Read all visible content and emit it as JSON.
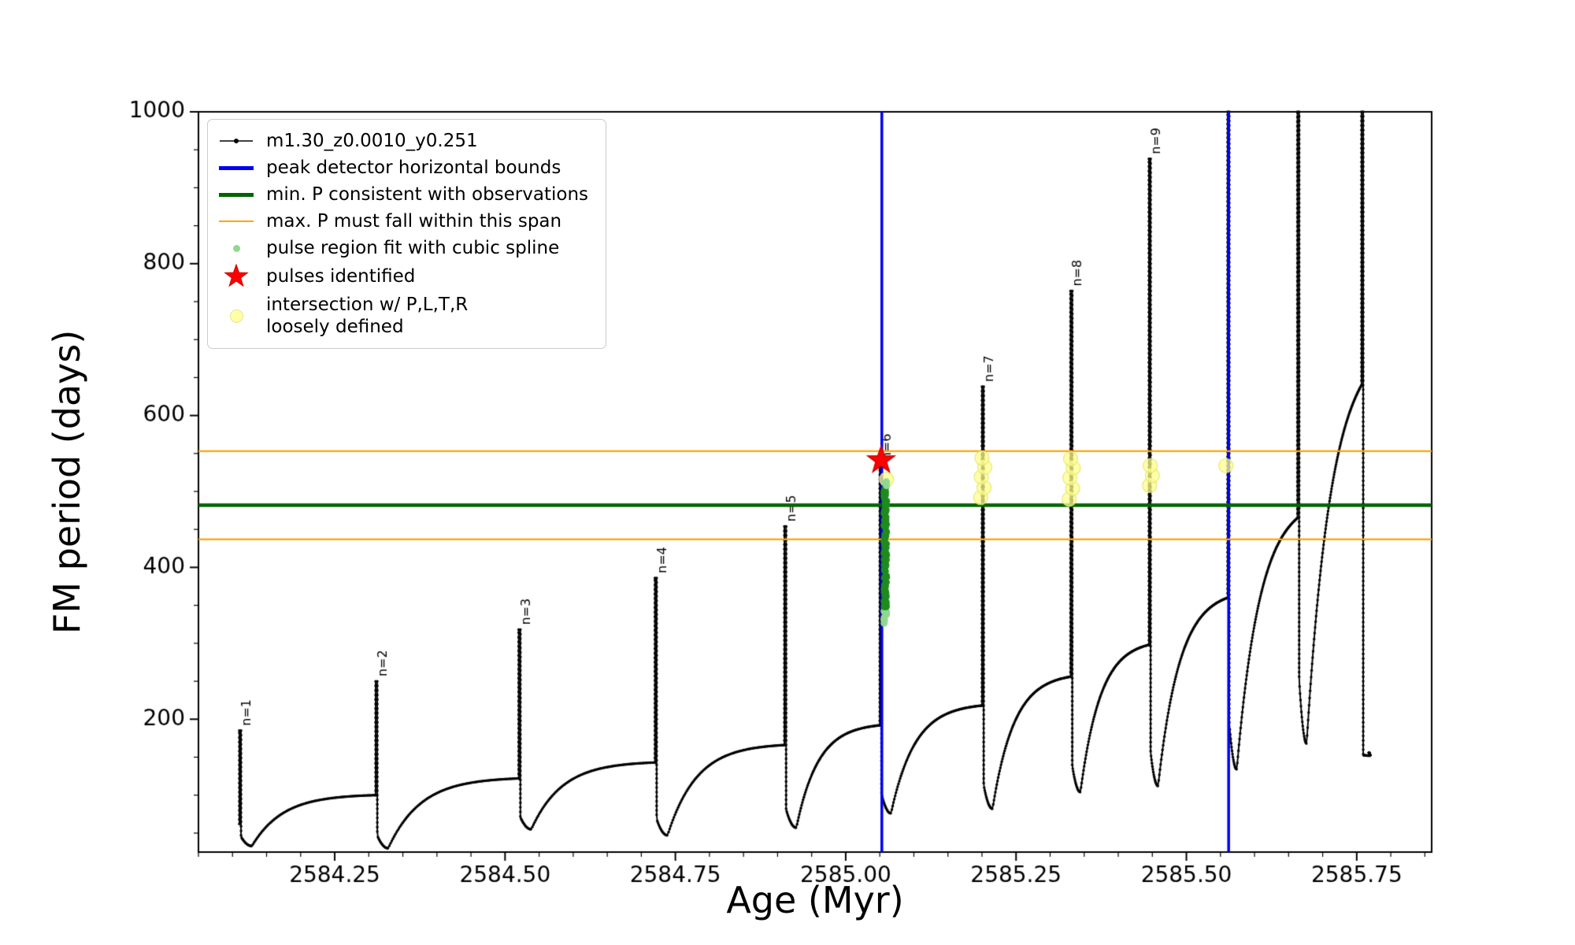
{
  "chart_data": {
    "type": "line",
    "title": "",
    "xlabel": "Age (Myr)",
    "ylabel": "FM period (days)",
    "xlim": [
      2584.05,
      2585.86
    ],
    "ylim": [
      25,
      1000
    ],
    "x_major_ticks": [
      2584.25,
      2584.5,
      2584.75,
      2585.0,
      2585.25,
      2585.5,
      2585.75
    ],
    "x_major_tick_labels": [
      "2584.25",
      "2584.50",
      "2584.75",
      "2585.00",
      "2585.25",
      "2585.50",
      "2585.75"
    ],
    "x_minor_tick_step": 0.05,
    "y_major_ticks": [
      200,
      400,
      600,
      800,
      1000
    ],
    "y_major_tick_labels": [
      "200",
      "400",
      "600",
      "800",
      "1000"
    ],
    "y_minor_tick_step": 50,
    "grid": false,
    "legend_position": "upper-left",
    "series_name": "m1.30_z0.0010_y0.251",
    "series_start_value": 62,
    "cycles": [
      {
        "label": "n=1",
        "x": 2584.11,
        "peak": 185,
        "valley": 33,
        "fall_dx": 0.016,
        "x_end": 2584.31,
        "plateau": 100,
        "rise_k": 4.0
      },
      {
        "label": "n=2",
        "x": 2584.31,
        "peak": 250,
        "valley": 30,
        "fall_dx": 0.016,
        "x_end": 2584.52,
        "plateau": 122,
        "rise_k": 4.0
      },
      {
        "label": "n=3",
        "x": 2584.52,
        "peak": 318,
        "valley": 55,
        "fall_dx": 0.016,
        "x_end": 2584.72,
        "plateau": 143,
        "rise_k": 4.0
      },
      {
        "label": "n=4",
        "x": 2584.72,
        "peak": 386,
        "valley": 47,
        "fall_dx": 0.016,
        "x_end": 2584.91,
        "plateau": 166,
        "rise_k": 4.0
      },
      {
        "label": "n=5",
        "x": 2584.91,
        "peak": 454,
        "valley": 57,
        "fall_dx": 0.015,
        "x_end": 2585.05,
        "plateau": 192,
        "rise_k": 3.8
      },
      {
        "label": "n=6",
        "x": 2585.05,
        "peak": 535,
        "valley": 76,
        "fall_dx": 0.014,
        "x_end": 2585.2,
        "plateau": 218,
        "rise_k": 3.8
      },
      {
        "label": "n=7",
        "x": 2585.2,
        "peak": 638,
        "valley": 82,
        "fall_dx": 0.013,
        "x_end": 2585.33,
        "plateau": 256,
        "rise_k": 3.6
      },
      {
        "label": "n=8",
        "x": 2585.33,
        "peak": 764,
        "valley": 104,
        "fall_dx": 0.012,
        "x_end": 2585.445,
        "plateau": 298,
        "rise_k": 3.4
      },
      {
        "label": "n=9",
        "x": 2585.445,
        "peak": 938,
        "valley": 112,
        "fall_dx": 0.011,
        "x_end": 2585.5605,
        "plateau": 360,
        "rise_k": 3.2
      },
      {
        "label": "",
        "x": 2585.5605,
        "peak": 1000,
        "valley": 134,
        "fall_dx": 0.011,
        "x_end": 2585.663,
        "plateau": 465,
        "rise_k": 2.6
      },
      {
        "label": "",
        "x": 2585.663,
        "peak": 1000,
        "valley": 168,
        "fall_dx": 0.011,
        "x_end": 2585.757,
        "plateau": 640,
        "rise_k": 2.2
      },
      {
        "label": "",
        "x": 2585.757,
        "peak": 1000,
        "valley": 152,
        "fall_dx": 0.01,
        "x_end": 2585.768,
        "plateau": 156,
        "rise_k": 2.0
      }
    ],
    "peak_detector_bounds_x": [
      2585.053,
      2585.562
    ],
    "min_P_line_y": 482,
    "max_P_span_y": [
      437,
      553
    ],
    "pulse_fit_points": {
      "x_center": 2585.058,
      "x_jitter": 0.002,
      "y_min": 328,
      "y_max": 514,
      "count": 95
    },
    "pulses_identified": [
      {
        "x": 2585.052,
        "y": 541
      }
    ],
    "intersections": [
      {
        "x": 2585.06,
        "y": 516
      },
      {
        "x": 2585.198,
        "y": 492
      },
      {
        "x": 2585.203,
        "y": 505
      },
      {
        "x": 2585.199,
        "y": 519
      },
      {
        "x": 2585.204,
        "y": 532
      },
      {
        "x": 2585.2,
        "y": 544
      },
      {
        "x": 2585.328,
        "y": 490
      },
      {
        "x": 2585.333,
        "y": 504
      },
      {
        "x": 2585.329,
        "y": 518
      },
      {
        "x": 2585.334,
        "y": 531
      },
      {
        "x": 2585.33,
        "y": 543
      },
      {
        "x": 2585.446,
        "y": 508
      },
      {
        "x": 2585.45,
        "y": 521
      },
      {
        "x": 2585.447,
        "y": 534
      },
      {
        "x": 2585.558,
        "y": 534
      }
    ],
    "colors": {
      "curve": "#000000",
      "peak_bounds": "#0000ee",
      "min_P": "#006400",
      "max_P": "#ffa500",
      "pulse_fit": "#90d890",
      "pulse_fit_dense": "#1f8b1f",
      "pulse_star": "#ff0000",
      "pulse_star_edge": "#cc0000",
      "intersection": "#ffff99",
      "intersection_edge": "#e8e87a"
    },
    "legend": [
      {
        "marker": "line-dot",
        "color": "#000000",
        "label": "m1.30_z0.0010_y0.251"
      },
      {
        "marker": "line-thick",
        "color": "#0000ee",
        "label": "peak detector horizontal bounds"
      },
      {
        "marker": "line-thick",
        "color": "#006400",
        "label": "min. P consistent with observations"
      },
      {
        "marker": "line-thin",
        "color": "#ffa500",
        "label": "max. P must fall within this span"
      },
      {
        "marker": "dot",
        "color": "#90d890",
        "label": "pulse region fit with cubic spline"
      },
      {
        "marker": "star",
        "color": "#ff0000",
        "label": "pulses identified"
      },
      {
        "marker": "circle",
        "color": "#ffff99",
        "label": "intersection w/ P,L,T,R\nloosely defined"
      }
    ]
  }
}
